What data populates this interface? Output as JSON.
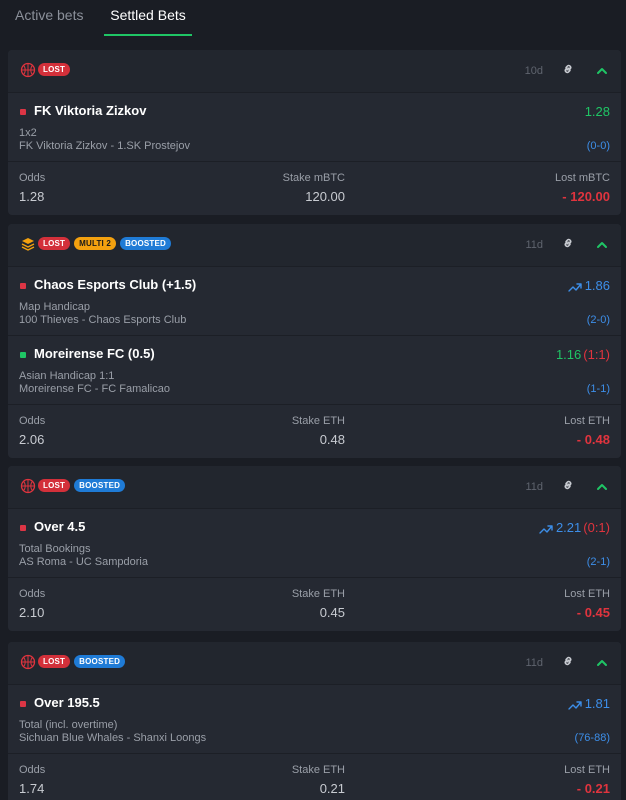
{
  "tabs": [
    {
      "label": "Active bets",
      "active": false
    },
    {
      "label": "Settled Bets",
      "active": true
    }
  ],
  "colors": {
    "lost": "#d3303a",
    "multi": "#f3a10f",
    "boosted": "#1f7bd6",
    "win": "#1fc565",
    "accent_blue": "#3d8ee8"
  },
  "bets": [
    {
      "sport_icon": "basketball-icon",
      "badges": [
        "LOST"
      ],
      "age": "10d",
      "selections": [
        {
          "status": "red",
          "name": "FK Viktoria Zizkov",
          "odds": "1.28",
          "odds_color": "green",
          "boosted": false,
          "result": "",
          "market": "1x2",
          "event": "FK Viktoria Zizkov - 1.SK Prostejov",
          "score": "(0-0)"
        }
      ],
      "odds_label": "Odds",
      "odds": "1.28",
      "stake_label": "Stake mBTC",
      "stake": "120.00",
      "lost_label": "Lost mBTC",
      "lost": "- 120.00"
    },
    {
      "sport_icon": "layers-icon",
      "badges": [
        "LOST",
        "MULTI 2",
        "BOOSTED"
      ],
      "age": "11d",
      "selections": [
        {
          "status": "red",
          "name": "Chaos Esports Club (+1.5)",
          "odds": "1.86",
          "odds_color": "blue",
          "boosted": true,
          "result": "",
          "market": "Map Handicap",
          "event": "100 Thieves - Chaos Esports Club",
          "score": "(2-0)"
        },
        {
          "status": "green",
          "name": "Moreirense FC (0.5)",
          "odds": "1.16",
          "odds_color": "green",
          "boosted": false,
          "result": "(1:1)",
          "market": "Asian Handicap 1:1",
          "event": "Moreirense FC - FC Famalicao",
          "score": "(1-1)"
        }
      ],
      "odds_label": "Odds",
      "odds": "2.06",
      "stake_label": "Stake ETH",
      "stake": "0.48",
      "lost_label": "Lost ETH",
      "lost": "- 0.48"
    },
    {
      "sport_icon": "basketball-icon",
      "badges": [
        "LOST",
        "BOOSTED"
      ],
      "age": "11d",
      "selections": [
        {
          "status": "red",
          "name": "Over 4.5",
          "odds": "2.21",
          "odds_color": "blue",
          "boosted": true,
          "result": "(0:1)",
          "market": "Total Bookings",
          "event": "AS Roma - UC Sampdoria",
          "score": "(2-1)"
        }
      ],
      "odds_label": "Odds",
      "odds": "2.10",
      "stake_label": "Stake ETH",
      "stake": "0.45",
      "lost_label": "Lost ETH",
      "lost": "- 0.45"
    },
    {
      "sport_icon": "basketball-icon",
      "badges": [
        "LOST",
        "BOOSTED"
      ],
      "age": "11d",
      "selections": [
        {
          "status": "red",
          "name": "Over 195.5",
          "odds": "1.81",
          "odds_color": "blue",
          "boosted": true,
          "result": "",
          "market": "Total (incl. overtime)",
          "event": "Sichuan Blue Whales - Shanxi Loongs",
          "score": "(76-88)"
        }
      ],
      "odds_label": "Odds",
      "odds": "1.74",
      "stake_label": "Stake ETH",
      "stake": "0.21",
      "lost_label": "Lost ETH",
      "lost": "- 0.21"
    }
  ]
}
